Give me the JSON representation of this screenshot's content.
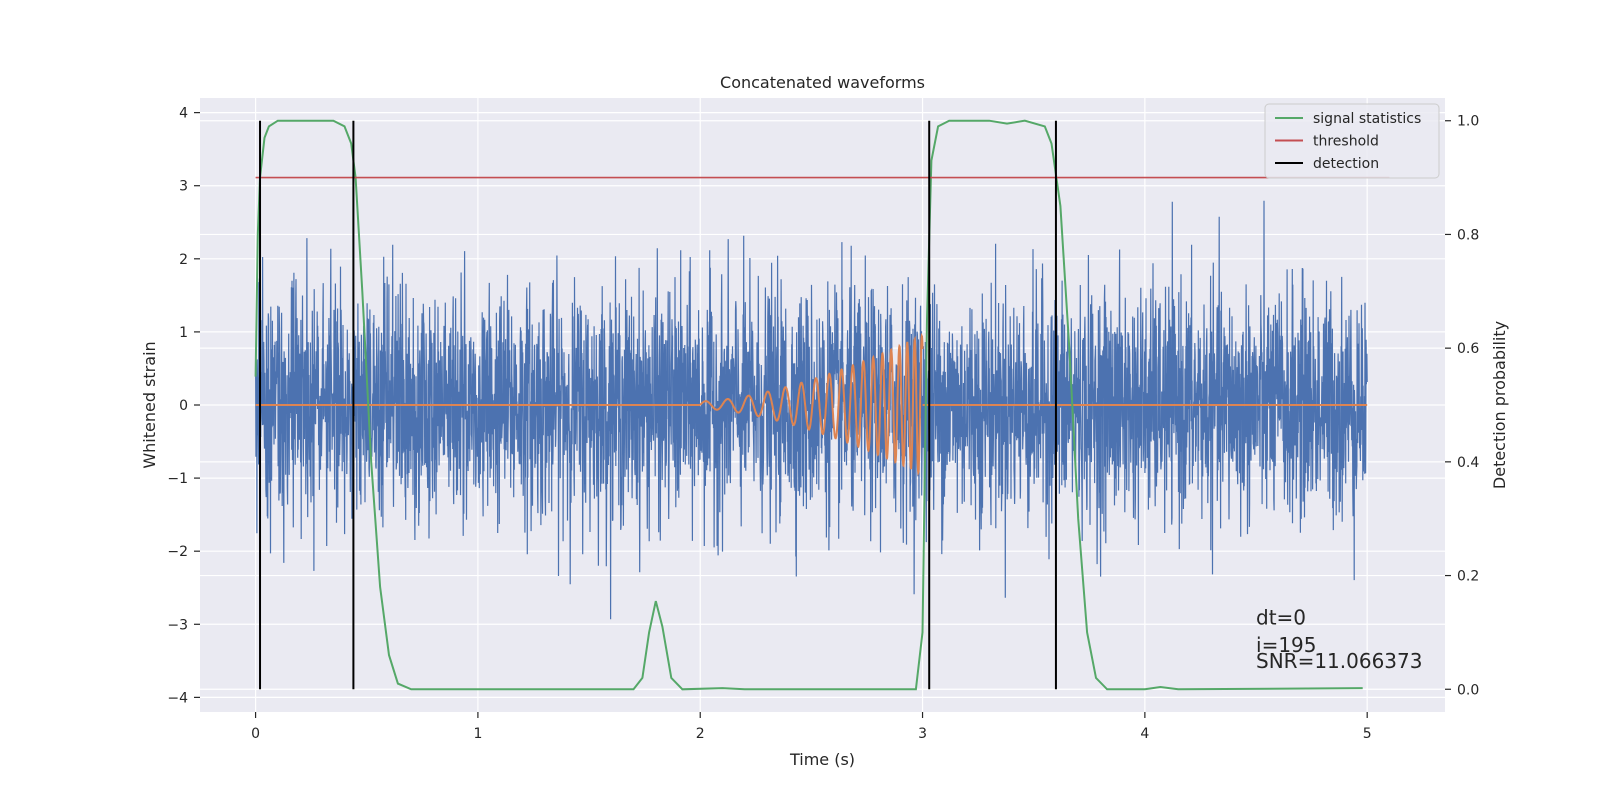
{
  "chart_data": {
    "type": "line",
    "title": "Concatenated waveforms",
    "xlabel": "Time (s)",
    "ylabel": "Whitened strain",
    "y2label": "Detection probability",
    "xlim": [
      -0.25,
      5.35
    ],
    "ylim": [
      -4.2,
      4.2
    ],
    "y2lim": [
      -0.04,
      1.04
    ],
    "x_ticks": [
      0,
      1,
      2,
      3,
      4,
      5
    ],
    "y_ticks": [
      -4,
      -3,
      -2,
      -1,
      0,
      1,
      2,
      3,
      4
    ],
    "y2_ticks": [
      0.0,
      0.2,
      0.4,
      0.6,
      0.8,
      1.0
    ],
    "y2_tick_labels": [
      "0.0",
      "0.2",
      "0.4",
      "0.6",
      "0.8",
      "1.0"
    ],
    "grid": true,
    "legend_position": "top-right",
    "legend": [
      {
        "label": "signal statistics",
        "color": "#55a868"
      },
      {
        "label": "threshold",
        "color": "#c44e52"
      },
      {
        "label": "detection",
        "color": "#000000"
      }
    ],
    "series": [
      {
        "name": "strain",
        "axis": "left",
        "color": "#4c72b0",
        "x_range": [
          0,
          5
        ],
        "noise_std": 0.78,
        "envelope": [
          -3.6,
          3.6
        ]
      },
      {
        "name": "waveform",
        "axis": "left",
        "color": "#dd8452",
        "segments": [
          {
            "x_range": [
              0,
              2
            ],
            "value": 0
          },
          {
            "x_range": [
              2,
              3
            ],
            "chirp": true,
            "start_amp": 0.05,
            "end_amp": 0.95,
            "start_freq": 10,
            "end_freq": 32
          },
          {
            "x_range": [
              3,
              5
            ],
            "value": 0
          }
        ]
      },
      {
        "name": "signal statistics",
        "axis": "right",
        "color": "#55a868",
        "points": [
          [
            0.0,
            0.55
          ],
          [
            0.01,
            0.8
          ],
          [
            0.02,
            0.9
          ],
          [
            0.04,
            0.97
          ],
          [
            0.06,
            0.99
          ],
          [
            0.1,
            1.0
          ],
          [
            0.35,
            1.0
          ],
          [
            0.4,
            0.99
          ],
          [
            0.43,
            0.96
          ],
          [
            0.45,
            0.9
          ],
          [
            0.48,
            0.7
          ],
          [
            0.52,
            0.4
          ],
          [
            0.56,
            0.18
          ],
          [
            0.6,
            0.06
          ],
          [
            0.64,
            0.01
          ],
          [
            0.7,
            0.0
          ],
          [
            1.7,
            0.0
          ],
          [
            1.74,
            0.02
          ],
          [
            1.77,
            0.1
          ],
          [
            1.8,
            0.155
          ],
          [
            1.83,
            0.11
          ],
          [
            1.87,
            0.02
          ],
          [
            1.92,
            0.0
          ],
          [
            2.1,
            0.002
          ],
          [
            2.2,
            0.0
          ],
          [
            2.97,
            0.0
          ],
          [
            3.0,
            0.1
          ],
          [
            3.02,
            0.65
          ],
          [
            3.04,
            0.93
          ],
          [
            3.07,
            0.99
          ],
          [
            3.12,
            1.0
          ],
          [
            3.3,
            1.0
          ],
          [
            3.38,
            0.995
          ],
          [
            3.46,
            1.0
          ],
          [
            3.55,
            0.99
          ],
          [
            3.58,
            0.96
          ],
          [
            3.62,
            0.85
          ],
          [
            3.66,
            0.6
          ],
          [
            3.7,
            0.3
          ],
          [
            3.74,
            0.1
          ],
          [
            3.78,
            0.02
          ],
          [
            3.83,
            0.0
          ],
          [
            4.0,
            0.0
          ],
          [
            4.07,
            0.004
          ],
          [
            4.15,
            0.0
          ],
          [
            4.98,
            0.002
          ]
        ]
      },
      {
        "name": "threshold",
        "axis": "right",
        "color": "#c44e52",
        "x_range": [
          0.0,
          5.1
        ],
        "value": 0.9
      },
      {
        "name": "detection",
        "axis": "right",
        "color": "#000000",
        "x_values": [
          0.02,
          0.44,
          3.03,
          3.6
        ],
        "y_range": [
          0.0,
          1.0
        ]
      }
    ],
    "annotations": [
      {
        "text": "dt=0",
        "x": 4.5,
        "y": -3.0
      },
      {
        "text": "i=195",
        "x": 4.5,
        "y": -3.38
      },
      {
        "text": "SNR=11.066373",
        "x": 4.5,
        "y": -3.6
      }
    ]
  }
}
